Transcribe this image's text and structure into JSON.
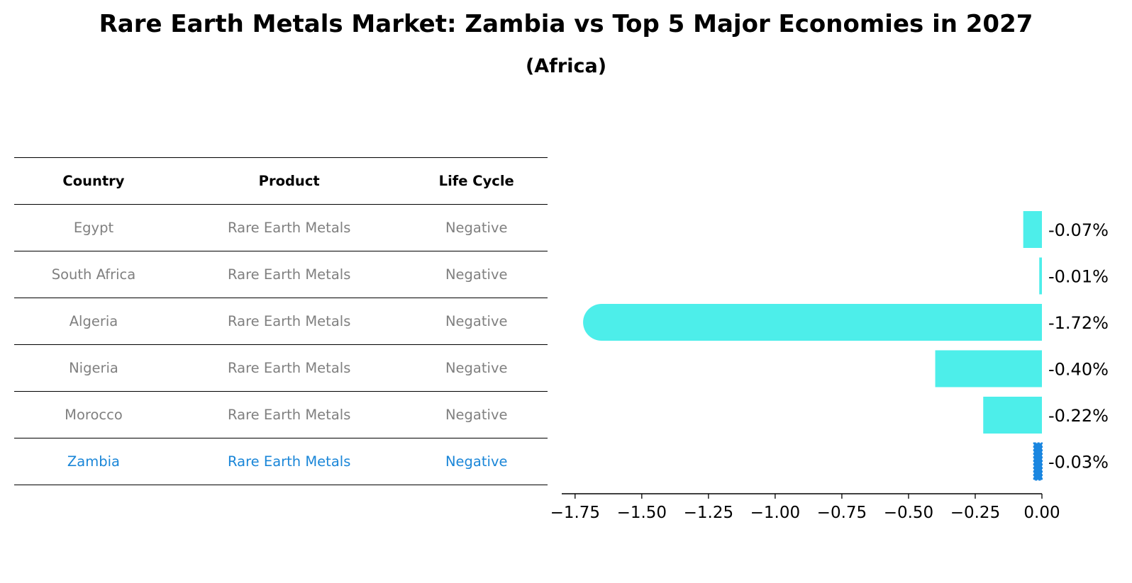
{
  "title": "Rare Earth Metals Market: Zambia vs Top 5 Major Economies in 2027",
  "subtitle": "(Africa)",
  "table": {
    "headers": [
      "Country",
      "Product",
      "Life Cycle"
    ],
    "rows": [
      {
        "country": "Egypt",
        "product": "Rare Earth Metals",
        "life_cycle": "Negative"
      },
      {
        "country": "South Africa",
        "product": "Rare Earth Metals",
        "life_cycle": "Negative"
      },
      {
        "country": "Algeria",
        "product": "Rare Earth Metals",
        "life_cycle": "Negative"
      },
      {
        "country": "Nigeria",
        "product": "Rare Earth Metals",
        "life_cycle": "Negative"
      },
      {
        "country": "Morocco",
        "product": "Rare Earth Metals",
        "life_cycle": "Negative"
      },
      {
        "country": "Zambia",
        "product": "Rare Earth Metals",
        "life_cycle": "Negative"
      }
    ]
  },
  "chart_data": {
    "type": "bar",
    "orientation": "horizontal",
    "categories": [
      "Egypt",
      "South Africa",
      "Algeria",
      "Nigeria",
      "Morocco",
      "Zambia"
    ],
    "values": [
      -0.07,
      -0.01,
      -1.72,
      -0.4,
      -0.22,
      -0.03
    ],
    "data_labels": [
      "-0.07%",
      "-0.01%",
      "-1.72%",
      "-0.40%",
      "-0.22%",
      "-0.03%"
    ],
    "xlim": [
      -1.8,
      0.0
    ],
    "xticks": [
      -1.75,
      -1.5,
      -1.25,
      -1.0,
      -0.75,
      -0.5,
      -0.25,
      0.0
    ],
    "xtick_labels": [
      "−1.75",
      "−1.50",
      "−1.25",
      "−1.00",
      "−0.75",
      "−0.50",
      "−0.25",
      "0.00"
    ],
    "colors": {
      "bar": "#4deeea",
      "highlight": "#1a86e0"
    },
    "highlight_index": 5,
    "grid": false
  }
}
